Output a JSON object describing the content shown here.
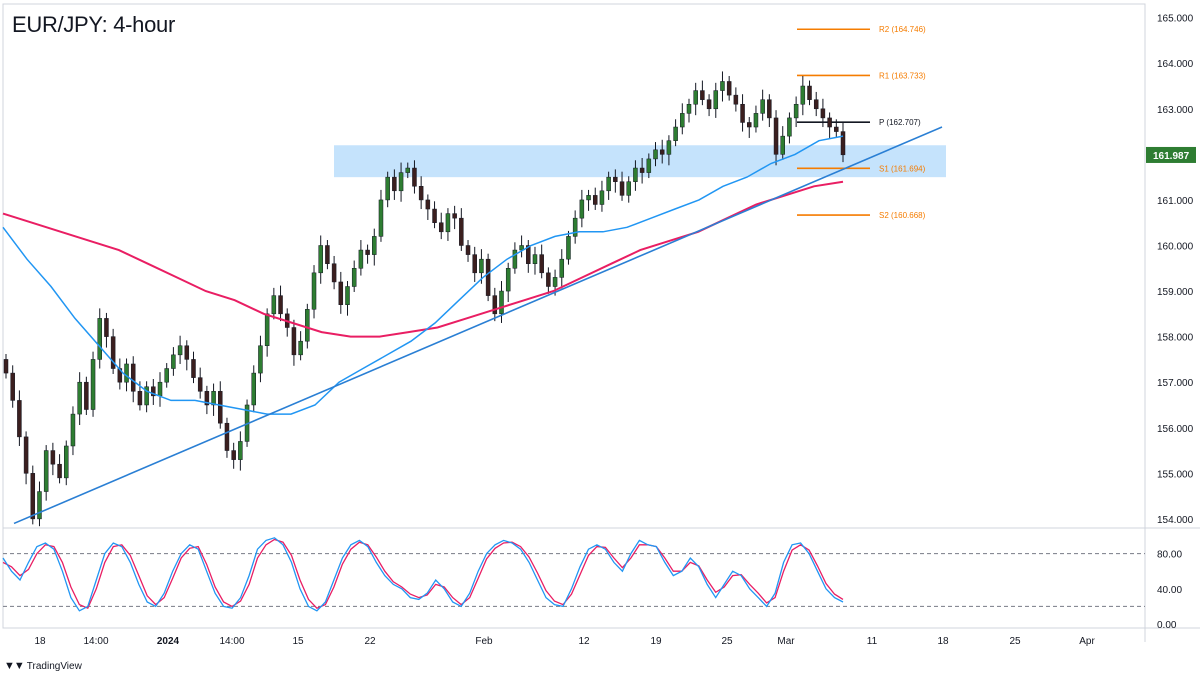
{
  "title": "EUR/JPY: 4-hour",
  "brand": {
    "icon": "tradingview-logo-icon",
    "label": "TradingView"
  },
  "colors": {
    "up": "#131722",
    "down": "#131722",
    "up_body": "#2e7d32",
    "down_body": "#3b1f1f",
    "sma_fast": "#2196f3",
    "sma_slow": "#e91e63",
    "trendline": "#2a7fd4",
    "pivot": "#131722",
    "resistance": "#f57c00",
    "support": "#f57c00",
    "zone": "#bbdefb",
    "stoch_k": "#2196f3",
    "stoch_d": "#e91e63",
    "price_tag": "#2e7d32"
  },
  "chart_data": [
    {
      "type": "candlestick",
      "title": "EUR/JPY: 4-hour",
      "x_ticks": [
        "18",
        "14:00",
        "2024",
        "14:00",
        "15",
        "22",
        "Feb",
        "12",
        "19",
        "25",
        "Mar",
        "11",
        "18",
        "25",
        "Apr"
      ],
      "y_ticks": [
        154.0,
        155.0,
        156.0,
        157.0,
        158.0,
        159.0,
        160.0,
        161.0,
        162.0,
        163.0,
        164.0,
        165.0
      ],
      "ylim": [
        153.8,
        165.3
      ],
      "last_price": "161.987",
      "closes": [
        157.2,
        156.6,
        155.8,
        155.0,
        154.0,
        154.6,
        155.5,
        155.2,
        154.9,
        155.6,
        156.3,
        157.0,
        156.4,
        157.5,
        158.4,
        158.0,
        157.3,
        157.0,
        157.4,
        156.8,
        156.5,
        156.9,
        156.7,
        157.0,
        157.3,
        157.6,
        157.8,
        157.5,
        157.1,
        156.8,
        156.5,
        156.8,
        156.1,
        155.5,
        155.3,
        155.7,
        156.5,
        157.2,
        157.8,
        158.5,
        158.9,
        158.5,
        158.2,
        157.6,
        157.9,
        158.6,
        159.4,
        160.0,
        159.6,
        159.2,
        158.7,
        159.1,
        159.5,
        159.9,
        159.8,
        160.2,
        161.0,
        161.5,
        161.2,
        161.6,
        161.7,
        161.3,
        161.0,
        160.8,
        160.5,
        160.3,
        160.7,
        160.6,
        160.0,
        159.8,
        159.4,
        159.7,
        158.9,
        158.5,
        159.0,
        159.5,
        159.9,
        160.0,
        159.6,
        159.8,
        159.4,
        159.1,
        159.3,
        159.7,
        160.2,
        160.6,
        161.0,
        161.1,
        160.9,
        161.2,
        161.5,
        161.4,
        161.1,
        161.4,
        161.7,
        161.6,
        161.9,
        162.1,
        162.0,
        162.3,
        162.6,
        162.9,
        163.1,
        163.4,
        163.2,
        163.0,
        163.4,
        163.6,
        163.3,
        163.1,
        162.7,
        162.6,
        162.9,
        163.2,
        162.8,
        162.0,
        162.4,
        162.8,
        163.1,
        163.5,
        163.2,
        163.0,
        162.8,
        162.6,
        162.5,
        161.99
      ],
      "levels": [
        {
          "name": "R2",
          "value": 164.746,
          "label": "R2 (164.746)"
        },
        {
          "name": "R1",
          "value": 163.733,
          "label": "R1 (163.733)"
        },
        {
          "name": "P",
          "value": 162.707,
          "label": "P (162.707)"
        },
        {
          "name": "S1",
          "value": 161.694,
          "label": "S1 (161.694)"
        },
        {
          "name": "S2",
          "value": 160.668,
          "label": "S2 (160.668)"
        }
      ],
      "zone": {
        "low": 161.5,
        "high": 162.2
      },
      "sma_fast": [
        160.4,
        159.7,
        159.1,
        158.4,
        157.8,
        157.2,
        156.8,
        156.6,
        156.6,
        156.5,
        156.4,
        156.3,
        156.3,
        156.5,
        157.0,
        157.3,
        157.6,
        157.9,
        158.3,
        158.8,
        159.3,
        159.7,
        160.0,
        160.2,
        160.3,
        160.3,
        160.4,
        160.6,
        160.8,
        161.0,
        161.3,
        161.5,
        161.8,
        162.0,
        162.3,
        162.4
      ],
      "sma_slow": [
        160.7,
        160.5,
        160.3,
        160.1,
        159.9,
        159.6,
        159.3,
        159.0,
        158.8,
        158.5,
        158.3,
        158.1,
        158.0,
        158.0,
        158.1,
        158.2,
        158.4,
        158.6,
        158.8,
        159.0,
        159.3,
        159.6,
        159.9,
        160.1,
        160.3,
        160.6,
        160.9,
        161.1,
        161.3,
        161.4
      ],
      "trendline": {
        "start": 153.9,
        "end": 162.6
      },
      "stoch_ticks": [
        80.0,
        40.0,
        0.0
      ],
      "stoch_levels": [
        80,
        20
      ],
      "stoch_k": [
        75,
        60,
        50,
        70,
        88,
        92,
        85,
        60,
        30,
        15,
        20,
        50,
        80,
        92,
        88,
        70,
        45,
        25,
        20,
        35,
        60,
        80,
        90,
        85,
        60,
        35,
        20,
        18,
        30,
        55,
        85,
        95,
        98,
        90,
        70,
        40,
        20,
        15,
        25,
        50,
        75,
        90,
        95,
        88,
        70,
        55,
        45,
        40,
        30,
        28,
        35,
        50,
        40,
        25,
        20,
        35,
        60,
        80,
        90,
        95,
        92,
        85,
        70,
        50,
        30,
        22,
        20,
        40,
        65,
        85,
        90,
        85,
        70,
        60,
        80,
        95,
        90,
        88,
        70,
        55,
        60,
        75,
        65,
        45,
        30,
        45,
        60,
        55,
        40,
        30,
        20,
        35,
        70,
        90,
        92,
        80,
        60,
        40,
        30,
        25
      ],
      "stoch_d": [
        70,
        65,
        55,
        62,
        80,
        90,
        88,
        70,
        42,
        22,
        18,
        40,
        70,
        88,
        90,
        78,
        55,
        32,
        22,
        30,
        52,
        75,
        86,
        88,
        68,
        42,
        25,
        20,
        26,
        45,
        75,
        90,
        96,
        93,
        78,
        50,
        28,
        18,
        22,
        42,
        68,
        85,
        93,
        90,
        76,
        60,
        48,
        42,
        34,
        30,
        33,
        45,
        42,
        30,
        22,
        30,
        52,
        74,
        86,
        92,
        93,
        88,
        76,
        58,
        38,
        26,
        22,
        34,
        56,
        78,
        88,
        87,
        75,
        64,
        75,
        90,
        90,
        88,
        75,
        60,
        60,
        70,
        66,
        50,
        36,
        42,
        55,
        56,
        45,
        35,
        24,
        30,
        60,
        84,
        90,
        84,
        66,
        46,
        34,
        28
      ]
    }
  ]
}
